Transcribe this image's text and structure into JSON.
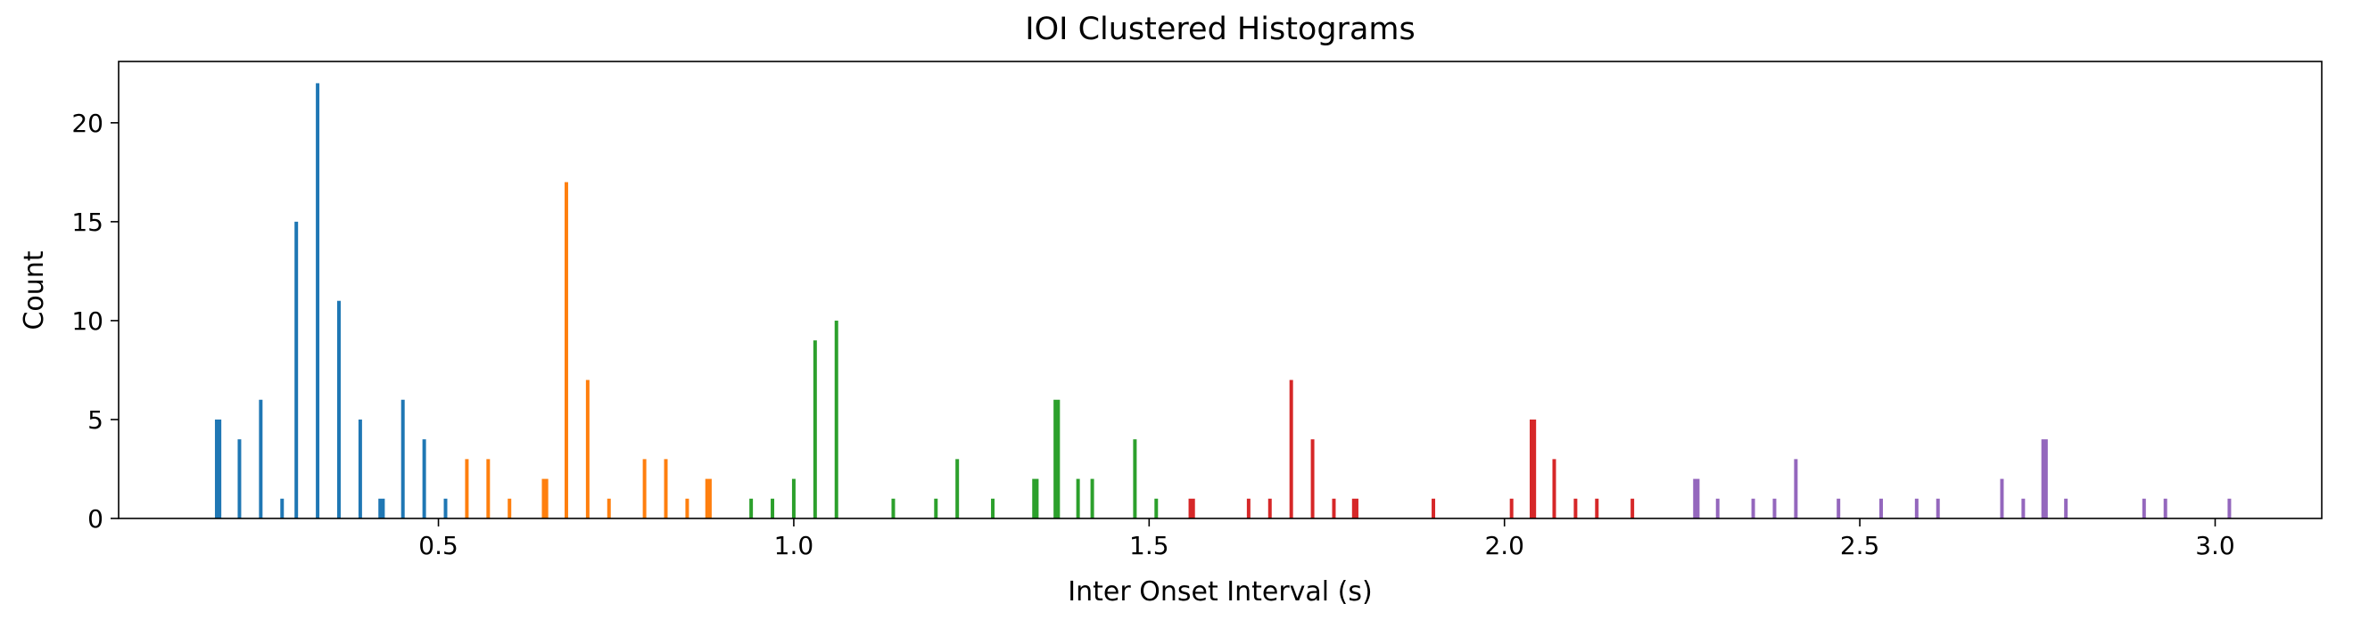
{
  "chart_data": {
    "type": "bar",
    "title": "IOI Clustered Histograms",
    "xlabel": "Inter Onset Interval (s)",
    "ylabel": "Count",
    "xlim": [
      0.05,
      3.15
    ],
    "ylim": [
      0,
      23.1
    ],
    "x_ticks": [
      {
        "value": 0.5,
        "label": "0.5"
      },
      {
        "value": 1.0,
        "label": "1.0"
      },
      {
        "value": 1.5,
        "label": "1.5"
      },
      {
        "value": 2.0,
        "label": "2.0"
      },
      {
        "value": 2.5,
        "label": "2.5"
      },
      {
        "value": 3.0,
        "label": "3.0"
      }
    ],
    "y_ticks": [
      {
        "value": 0,
        "label": "0"
      },
      {
        "value": 5,
        "label": "5"
      },
      {
        "value": 10,
        "label": "10"
      },
      {
        "value": 15,
        "label": "15"
      },
      {
        "value": 20,
        "label": "20"
      }
    ],
    "grid": false,
    "legend": false,
    "series": [
      {
        "color": "#1f77b4",
        "bars": [
          {
            "x": 0.19,
            "y": 5,
            "w": 0.009
          },
          {
            "x": 0.22,
            "y": 4,
            "w": 0.005
          },
          {
            "x": 0.25,
            "y": 6,
            "w": 0.005
          },
          {
            "x": 0.28,
            "y": 1,
            "w": 0.005
          },
          {
            "x": 0.3,
            "y": 15,
            "w": 0.005
          },
          {
            "x": 0.33,
            "y": 22,
            "w": 0.005
          },
          {
            "x": 0.36,
            "y": 11,
            "w": 0.005
          },
          {
            "x": 0.39,
            "y": 5,
            "w": 0.005
          },
          {
            "x": 0.42,
            "y": 1,
            "w": 0.009
          },
          {
            "x": 0.45,
            "y": 6,
            "w": 0.005
          },
          {
            "x": 0.48,
            "y": 4,
            "w": 0.005
          },
          {
            "x": 0.51,
            "y": 1,
            "w": 0.005
          }
        ]
      },
      {
        "color": "#ff7f0e",
        "bars": [
          {
            "x": 0.54,
            "y": 3,
            "w": 0.005
          },
          {
            "x": 0.57,
            "y": 3,
            "w": 0.005
          },
          {
            "x": 0.6,
            "y": 1,
            "w": 0.005
          },
          {
            "x": 0.65,
            "y": 2,
            "w": 0.009
          },
          {
            "x": 0.68,
            "y": 17,
            "w": 0.005
          },
          {
            "x": 0.71,
            "y": 7,
            "w": 0.005
          },
          {
            "x": 0.74,
            "y": 1,
            "w": 0.005
          },
          {
            "x": 0.79,
            "y": 3,
            "w": 0.005
          },
          {
            "x": 0.82,
            "y": 3,
            "w": 0.005
          },
          {
            "x": 0.85,
            "y": 1,
            "w": 0.005
          },
          {
            "x": 0.88,
            "y": 2,
            "w": 0.009
          }
        ]
      },
      {
        "color": "#2ca02c",
        "bars": [
          {
            "x": 0.94,
            "y": 1,
            "w": 0.005
          },
          {
            "x": 0.97,
            "y": 1,
            "w": 0.005
          },
          {
            "x": 1.0,
            "y": 2,
            "w": 0.005
          },
          {
            "x": 1.03,
            "y": 9,
            "w": 0.005
          },
          {
            "x": 1.06,
            "y": 10,
            "w": 0.005
          },
          {
            "x": 1.14,
            "y": 1,
            "w": 0.005
          },
          {
            "x": 1.2,
            "y": 1,
            "w": 0.005
          },
          {
            "x": 1.23,
            "y": 3,
            "w": 0.005
          },
          {
            "x": 1.28,
            "y": 1,
            "w": 0.005
          },
          {
            "x": 1.34,
            "y": 2,
            "w": 0.009
          },
          {
            "x": 1.37,
            "y": 6,
            "w": 0.009
          },
          {
            "x": 1.4,
            "y": 2,
            "w": 0.005
          },
          {
            "x": 1.42,
            "y": 2,
            "w": 0.005
          },
          {
            "x": 1.48,
            "y": 4,
            "w": 0.005
          },
          {
            "x": 1.51,
            "y": 1,
            "w": 0.005
          }
        ]
      },
      {
        "color": "#d62728",
        "bars": [
          {
            "x": 1.56,
            "y": 1,
            "w": 0.009
          },
          {
            "x": 1.64,
            "y": 1,
            "w": 0.005
          },
          {
            "x": 1.67,
            "y": 1,
            "w": 0.005
          },
          {
            "x": 1.7,
            "y": 7,
            "w": 0.005
          },
          {
            "x": 1.73,
            "y": 4,
            "w": 0.005
          },
          {
            "x": 1.76,
            "y": 1,
            "w": 0.005
          },
          {
            "x": 1.79,
            "y": 1,
            "w": 0.009
          },
          {
            "x": 1.9,
            "y": 1,
            "w": 0.005
          },
          {
            "x": 2.01,
            "y": 1,
            "w": 0.005
          },
          {
            "x": 2.04,
            "y": 5,
            "w": 0.009
          },
          {
            "x": 2.07,
            "y": 3,
            "w": 0.005
          },
          {
            "x": 2.1,
            "y": 1,
            "w": 0.005
          },
          {
            "x": 2.13,
            "y": 1,
            "w": 0.005
          },
          {
            "x": 2.18,
            "y": 1,
            "w": 0.005
          }
        ]
      },
      {
        "color": "#9467bd",
        "bars": [
          {
            "x": 2.27,
            "y": 2,
            "w": 0.009
          },
          {
            "x": 2.3,
            "y": 1,
            "w": 0.005
          },
          {
            "x": 2.35,
            "y": 1,
            "w": 0.005
          },
          {
            "x": 2.38,
            "y": 1,
            "w": 0.005
          },
          {
            "x": 2.41,
            "y": 3,
            "w": 0.005
          },
          {
            "x": 2.47,
            "y": 1,
            "w": 0.005
          },
          {
            "x": 2.53,
            "y": 1,
            "w": 0.005
          },
          {
            "x": 2.58,
            "y": 1,
            "w": 0.005
          },
          {
            "x": 2.61,
            "y": 1,
            "w": 0.005
          },
          {
            "x": 2.7,
            "y": 2,
            "w": 0.005
          },
          {
            "x": 2.73,
            "y": 1,
            "w": 0.005
          },
          {
            "x": 2.76,
            "y": 4,
            "w": 0.009
          },
          {
            "x": 2.79,
            "y": 1,
            "w": 0.005
          },
          {
            "x": 2.9,
            "y": 1,
            "w": 0.005
          },
          {
            "x": 2.93,
            "y": 1,
            "w": 0.005
          },
          {
            "x": 3.02,
            "y": 1,
            "w": 0.005
          }
        ]
      }
    ]
  }
}
